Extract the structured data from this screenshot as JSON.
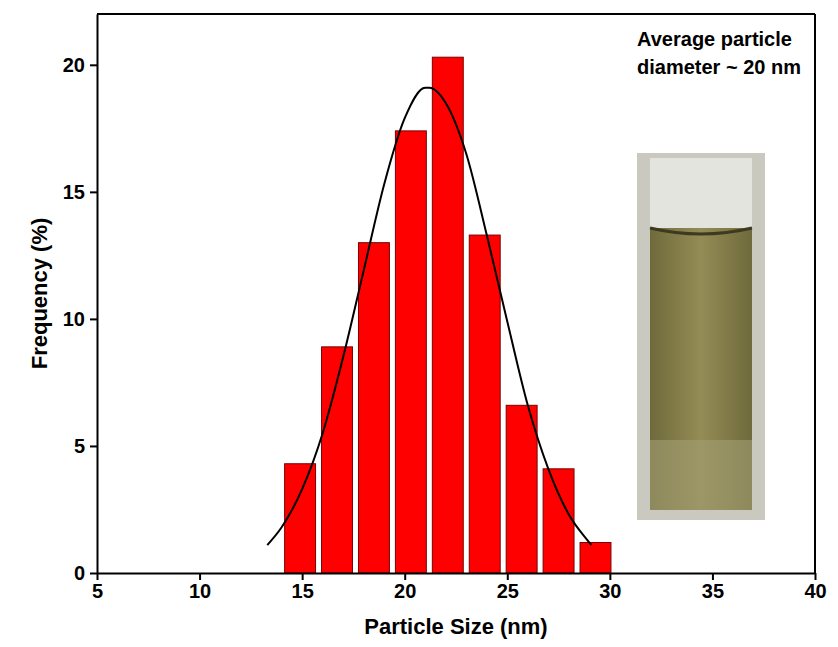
{
  "chart_data": {
    "type": "histogram",
    "xlabel": "Particle Size (nm)",
    "ylabel": "Frequency (%)",
    "annotation": "Average particle diameter ~ 20 nm",
    "bins": [
      14,
      15.8,
      17.6,
      19.4,
      21.2,
      23,
      24.8,
      26.6,
      28.4,
      30.2
    ],
    "values": [
      4.3,
      8.9,
      13.0,
      17.4,
      20.3,
      13.3,
      6.6,
      4.1,
      1.2
    ],
    "color": "#ff0000",
    "fit": {
      "type": "line",
      "color": "#000000",
      "x": [
        13.3,
        14,
        15,
        16,
        17,
        18,
        19,
        20,
        21,
        21.2,
        22,
        23,
        24,
        25,
        26,
        27,
        28,
        29,
        29.1
      ],
      "values": [
        1.1,
        1.8,
        3.3,
        5.5,
        8.5,
        11.9,
        15.3,
        17.9,
        19.1,
        19.1,
        18.5,
        16.5,
        13.3,
        9.9,
        6.6,
        4.1,
        2.3,
        1.2,
        1.1
      ]
    },
    "xlim": [
      5,
      40
    ],
    "xticks": [
      5,
      10,
      15,
      20,
      25,
      30,
      35,
      40
    ],
    "ylim": [
      0,
      22
    ],
    "yticks": [
      0,
      5,
      10,
      15,
      20
    ],
    "grid": false
  }
}
